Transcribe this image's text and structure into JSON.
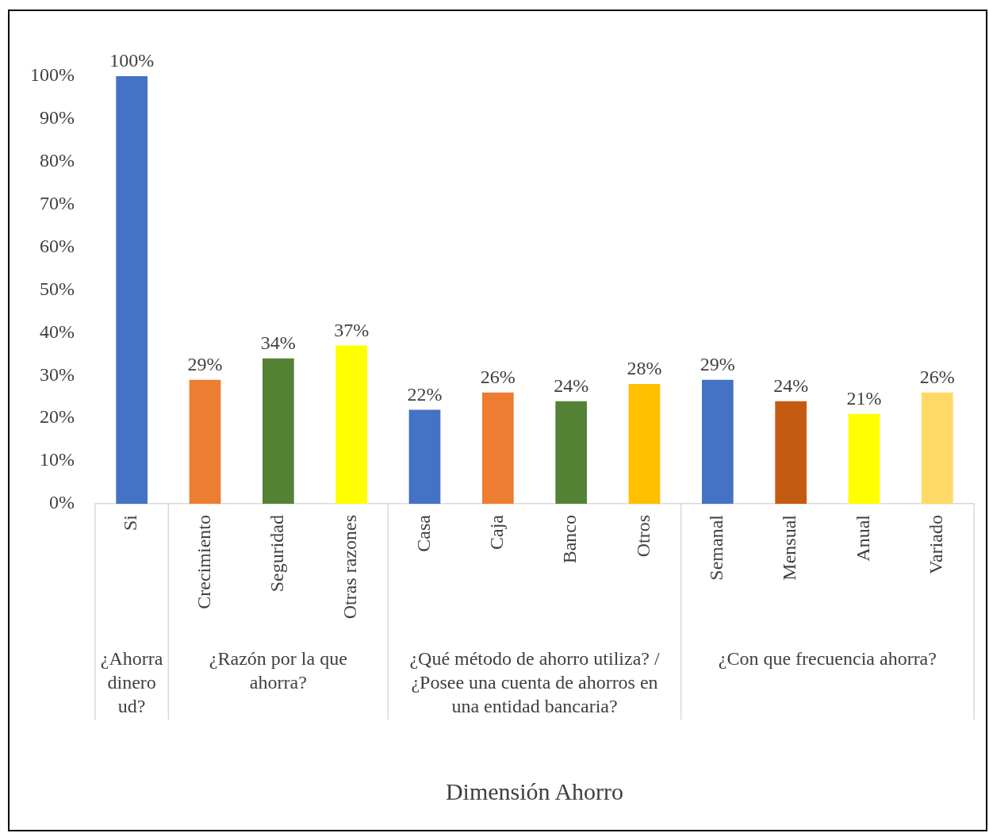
{
  "chart_data": {
    "type": "bar",
    "categories": [
      "Si",
      "Crecimiento",
      "Seguridad",
      "Otras razones",
      "Casa",
      "Caja",
      "Banco",
      "Otros",
      "Semanal",
      "Mensual",
      "Anual",
      "Variado"
    ],
    "values": [
      100,
      29,
      34,
      37,
      22,
      26,
      24,
      28,
      29,
      24,
      21,
      26
    ],
    "colors": [
      "#4472c4",
      "#ed7d31",
      "#548235",
      "#ffff00",
      "#4472c4",
      "#ed7d31",
      "#548235",
      "#ffc000",
      "#4472c4",
      "#c55a11",
      "#ffff00",
      "#ffd966"
    ],
    "value_labels": [
      "100%",
      "29%",
      "34%",
      "37%",
      "22%",
      "26%",
      "24%",
      "28%",
      "29%",
      "24%",
      "21%",
      "26%"
    ],
    "ylim": [
      0,
      100
    ],
    "yticks": [
      {
        "value": 0,
        "label": "0%"
      },
      {
        "value": 10,
        "label": "10%"
      },
      {
        "value": 20,
        "label": "20%"
      },
      {
        "value": 30,
        "label": "30%"
      },
      {
        "value": 40,
        "label": "40%"
      },
      {
        "value": 50,
        "label": "50%"
      },
      {
        "value": 60,
        "label": "60%"
      },
      {
        "value": 70,
        "label": "70%"
      },
      {
        "value": 80,
        "label": "80%"
      },
      {
        "value": 90,
        "label": "90%"
      },
      {
        "value": 100,
        "label": "100%"
      }
    ],
    "annotations": [
      "¿Ahorra dinero ud?",
      "¿Razón por la que ahorra?",
      "¿Qué método de ahorro utiliza? / ¿Posee una cuenta de ahorros en una entidad bancaria?",
      "¿Con que frecuencia ahorra?",
      "Dimensión Ahorro"
    ],
    "grid": false,
    "legend": false
  }
}
